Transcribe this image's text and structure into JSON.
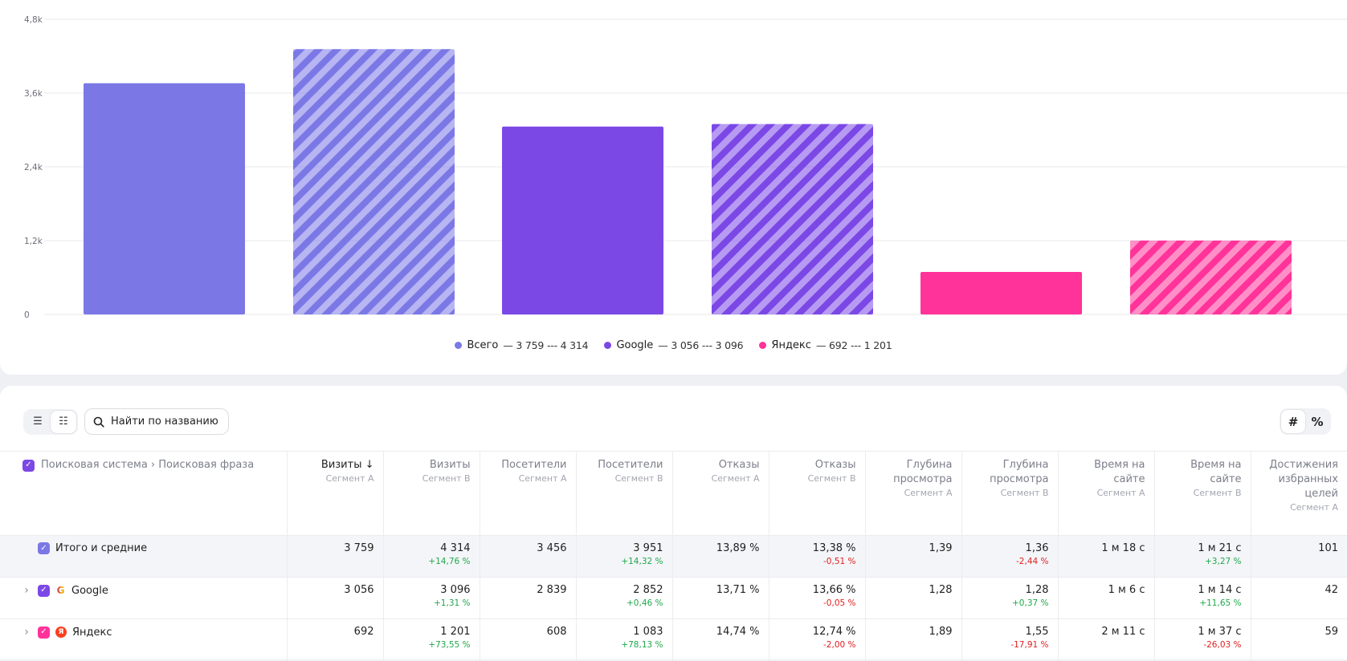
{
  "chart_data": {
    "type": "bar",
    "categories": [
      "Всего",
      "Google",
      "Яндекс"
    ],
    "series": [
      {
        "name": "Сегмент A",
        "values": [
          3759,
          3056,
          692
        ]
      },
      {
        "name": "Сегмент B",
        "values": [
          4314,
          3096,
          1201
        ]
      }
    ],
    "ylim": [
      0,
      4800
    ],
    "yticks": [
      "0",
      "1,2k",
      "2,4k",
      "3,6k",
      "4,8k"
    ],
    "ytick_values": [
      0,
      1200,
      2400,
      3600,
      4800
    ],
    "colors": [
      "#7b78e6",
      "#7b48e6",
      "#ff3399"
    ],
    "pattern_b": "diagonal-stripes",
    "grid": true
  },
  "legend": [
    {
      "label": "Всего",
      "a": "3 759",
      "b": "4 314",
      "color": "#7b78e6"
    },
    {
      "label": "Google",
      "a": "3 056",
      "b": "3 096",
      "color": "#7b48e6"
    },
    {
      "label": "Яндекс",
      "a": "692",
      "b": "1 201",
      "color": "#ff3399"
    }
  ],
  "toolbar": {
    "search_placeholder": "Найти по названию",
    "unit_hash": "#",
    "unit_percent": "%",
    "list_icon": "list-icon",
    "tree_icon": "tree-list-icon",
    "search_icon": "search-icon"
  },
  "table": {
    "dimension_header": "Поисковая система › Поисковая фраза",
    "columns": [
      {
        "title": "Визиты",
        "segment": "Сегмент A",
        "sorted": "↓"
      },
      {
        "title": "Визиты",
        "segment": "Сегмент B"
      },
      {
        "title": "Посетители",
        "segment": "Сегмент A"
      },
      {
        "title": "Посетители",
        "segment": "Сегмент B"
      },
      {
        "title": "Отказы",
        "segment": "Сегмент A"
      },
      {
        "title": "Отказы",
        "segment": "Сегмент B"
      },
      {
        "title": "Глубина просмотра",
        "segment": "Сегмент A"
      },
      {
        "title": "Глубина просмотра",
        "segment": "Сегмент B"
      },
      {
        "title": "Время на сайте",
        "segment": "Сегмент A"
      },
      {
        "title": "Время на сайте",
        "segment": "Сегмент B"
      },
      {
        "title": "Достижения избранных целей",
        "segment": "Сегмент A"
      }
    ],
    "rows": [
      {
        "label": "Итого и средние",
        "kind": "total",
        "cells": [
          {
            "v": "3 759"
          },
          {
            "v": "4 314",
            "d": "+14,76 %",
            "s": "pos"
          },
          {
            "v": "3 456"
          },
          {
            "v": "3 951",
            "d": "+14,32 %",
            "s": "pos"
          },
          {
            "v": "13,89 %"
          },
          {
            "v": "13,38 %",
            "d": "-0,51 %",
            "s": "neg"
          },
          {
            "v": "1,39"
          },
          {
            "v": "1,36",
            "d": "-2,44 %",
            "s": "neg"
          },
          {
            "v": "1 м 18 с"
          },
          {
            "v": "1 м 21 с",
            "d": "+3,27 %",
            "s": "pos"
          },
          {
            "v": "101"
          }
        ]
      },
      {
        "label": "Google",
        "kind": "google",
        "cells": [
          {
            "v": "3 056"
          },
          {
            "v": "3 096",
            "d": "+1,31 %",
            "s": "pos"
          },
          {
            "v": "2 839"
          },
          {
            "v": "2 852",
            "d": "+0,46 %",
            "s": "pos"
          },
          {
            "v": "13,71 %"
          },
          {
            "v": "13,66 %",
            "d": "-0,05 %",
            "s": "neg"
          },
          {
            "v": "1,28"
          },
          {
            "v": "1,28",
            "d": "+0,37 %",
            "s": "pos"
          },
          {
            "v": "1 м 6 с"
          },
          {
            "v": "1 м 14 с",
            "d": "+11,65 %",
            "s": "pos"
          },
          {
            "v": "42"
          }
        ]
      },
      {
        "label": "Яндекс",
        "kind": "yandex",
        "cells": [
          {
            "v": "692"
          },
          {
            "v": "1 201",
            "d": "+73,55 %",
            "s": "pos"
          },
          {
            "v": "608"
          },
          {
            "v": "1 083",
            "d": "+78,13 %",
            "s": "pos"
          },
          {
            "v": "14,74 %"
          },
          {
            "v": "12,74 %",
            "d": "-2,00 %",
            "s": "neg"
          },
          {
            "v": "1,89"
          },
          {
            "v": "1,55",
            "d": "-17,91 %",
            "s": "neg"
          },
          {
            "v": "2 м 11 с"
          },
          {
            "v": "1 м 37 с",
            "d": "-26,03 %",
            "s": "neg"
          },
          {
            "v": "59"
          }
        ]
      }
    ]
  }
}
